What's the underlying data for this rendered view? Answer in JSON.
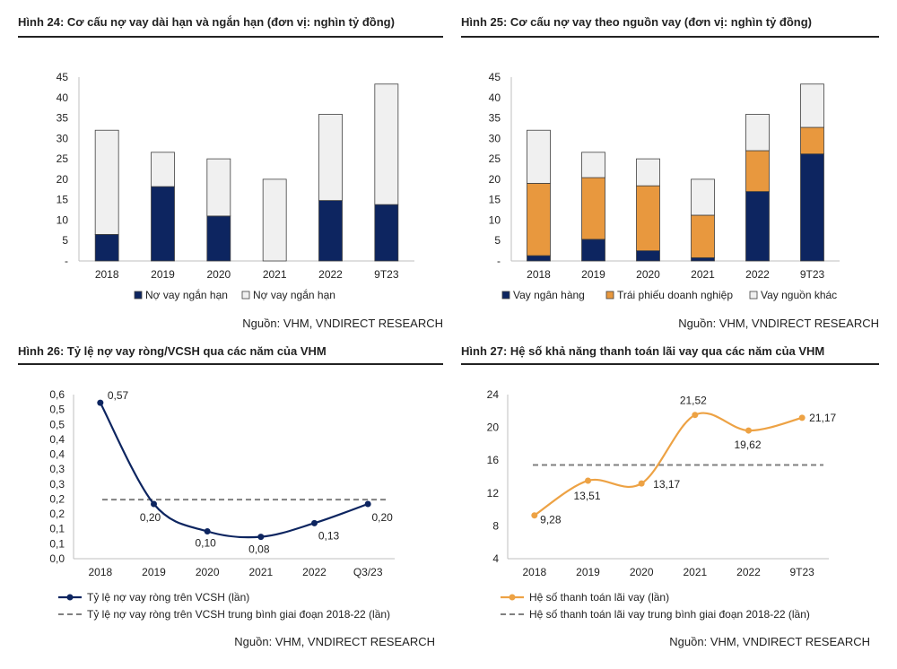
{
  "panels": [
    {
      "title": "Hình 24: Cơ cấu nợ vay dài hạn và ngắn hạn (đơn vị: nghìn tỷ đồng)",
      "source": "Nguồn: VHM, VNDIRECT RESEARCH"
    },
    {
      "title": "Hình 25: Cơ cấu nợ vay theo nguồn vay (đơn vị: nghìn tỷ đồng)",
      "source": "Nguồn: VHM, VNDIRECT RESEARCH"
    },
    {
      "title": "Hình 26: Tỷ lệ nợ vay ròng/VCSH qua các năm của VHM",
      "source": "Nguồn: VHM, VNDIRECT RESEARCH"
    },
    {
      "title": "Hình 27: Hệ số khả năng thanh toán lãi vay qua các năm của VHM",
      "source": "Nguồn: VHM, VNDIRECT RESEARCH"
    }
  ],
  "chart_data": [
    {
      "type": "bar",
      "stacked": true,
      "categories": [
        "2018",
        "2019",
        "2020",
        "2021",
        "2022",
        "9T23"
      ],
      "series": [
        {
          "name": "Nợ vay ngắn hạn",
          "color": "#0d2560",
          "values": [
            6.5,
            18.2,
            11.0,
            0.0,
            14.8,
            13.8
          ]
        },
        {
          "name": "Nợ vay ngắn hạn",
          "color": "#f0f0f0",
          "values": [
            25.5,
            8.4,
            14.0,
            20.0,
            21.1,
            29.5
          ]
        }
      ],
      "yticks": [
        "-",
        "5",
        "10",
        "15",
        "20",
        "25",
        "30",
        "35",
        "40",
        "45"
      ],
      "ylim": [
        0,
        45
      ],
      "legend": "bottom"
    },
    {
      "type": "bar",
      "stacked": true,
      "categories": [
        "2018",
        "2019",
        "2020",
        "2021",
        "2022",
        "9T23"
      ],
      "series": [
        {
          "name": "Vay ngân hàng",
          "color": "#0d2560",
          "values": [
            1.3,
            5.3,
            2.5,
            0.8,
            17.0,
            26.2
          ]
        },
        {
          "name": "Trái phiếu doanh nghiệp",
          "color": "#e8983e",
          "values": [
            17.7,
            15.1,
            15.9,
            10.4,
            10.0,
            6.5
          ]
        },
        {
          "name": "Vay nguồn khác",
          "color": "#f0f0f0",
          "values": [
            13.0,
            6.2,
            6.6,
            8.8,
            8.9,
            10.6
          ]
        }
      ],
      "yticks": [
        "-",
        "5",
        "10",
        "15",
        "20",
        "25",
        "30",
        "35",
        "40",
        "45"
      ],
      "ylim": [
        0,
        45
      ],
      "legend": "bottom"
    },
    {
      "type": "line",
      "categories": [
        "2018",
        "2019",
        "2020",
        "2021",
        "2022",
        "Q3/23"
      ],
      "series": [
        {
          "name": "Tỷ lệ nợ vay ròng trên VCSH (lần)",
          "color": "#0d2560",
          "values": [
            0.57,
            0.2,
            0.1,
            0.08,
            0.13,
            0.2
          ],
          "labels": [
            "0,57",
            "0,20",
            "0,10",
            "0,08",
            "0,13",
            "0,20"
          ]
        },
        {
          "name": "Tỷ lệ nợ vay ròng trên VCSH trung bình giai đoạn 2018-22 (lần)",
          "color": "#808080",
          "dashed": true,
          "values": [
            0.216,
            0.216,
            0.216,
            0.216,
            0.216,
            0.216
          ]
        }
      ],
      "yticks": [
        "0,0",
        "0,1",
        "0,1",
        "0,2",
        "0,2",
        "0,3",
        "0,3",
        "0,4",
        "0,4",
        "0,5",
        "0,5",
        "0,6"
      ],
      "ylim": [
        0,
        0.6
      ],
      "legend": "bottom"
    },
    {
      "type": "line",
      "categories": [
        "2018",
        "2019",
        "2020",
        "2021",
        "2022",
        "9T23"
      ],
      "series": [
        {
          "name": "Hệ số thanh toán lãi vay (lần)",
          "color": "#eda244",
          "values": [
            9.28,
            13.51,
            13.17,
            21.52,
            19.62,
            21.17
          ],
          "labels": [
            "9,28",
            "13,51",
            "13,17",
            "21,52",
            "19,62",
            "21,17"
          ]
        },
        {
          "name": "Hệ số thanh toán lãi vay trung bình giai đoạn 2018-22 (lần)",
          "color": "#808080",
          "dashed": true,
          "values": [
            15.42,
            15.42,
            15.42,
            15.42,
            15.42,
            15.42
          ]
        }
      ],
      "yticks": [
        "4",
        "8",
        "12",
        "16",
        "20",
        "24"
      ],
      "ylim": [
        4,
        24
      ],
      "legend": "bottom"
    }
  ]
}
